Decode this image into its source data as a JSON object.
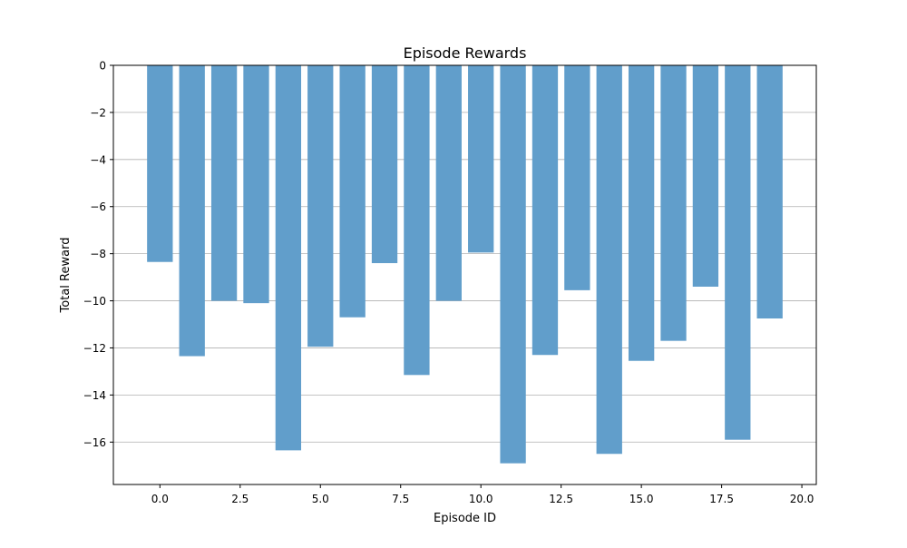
{
  "chart_data": {
    "type": "bar",
    "title": "Episode Rewards",
    "xlabel": "Episode ID",
    "ylabel": "Total Reward",
    "x": [
      0,
      1,
      2,
      3,
      4,
      5,
      6,
      7,
      8,
      9,
      10,
      11,
      12,
      13,
      14,
      15,
      16,
      17,
      18,
      19
    ],
    "values": [
      -8.35,
      -12.35,
      -10.0,
      -10.1,
      -16.35,
      -11.95,
      -10.7,
      -8.4,
      -13.15,
      -10.0,
      -7.95,
      -16.9,
      -12.3,
      -9.55,
      -16.5,
      -12.55,
      -11.7,
      -9.4,
      -15.9,
      -10.75
    ],
    "xlim": [
      -1.45,
      20.45
    ],
    "ylim": [
      -17.8,
      0
    ],
    "xticks": [
      0.0,
      2.5,
      5.0,
      7.5,
      10.0,
      12.5,
      15.0,
      17.5,
      20.0
    ],
    "xtick_labels": [
      "0.0",
      "2.5",
      "5.0",
      "7.5",
      "10.0",
      "12.5",
      "15.0",
      "17.5",
      "20.0"
    ],
    "yticks": [
      0,
      -2,
      -4,
      -6,
      -8,
      -10,
      -12,
      -14,
      -16
    ],
    "ytick_labels": [
      "0",
      "−2",
      "−4",
      "−6",
      "−8",
      "−10",
      "−12",
      "−14",
      "−16"
    ],
    "bar_color": "#619ecb",
    "grid": "y-axis",
    "legend": "none"
  }
}
